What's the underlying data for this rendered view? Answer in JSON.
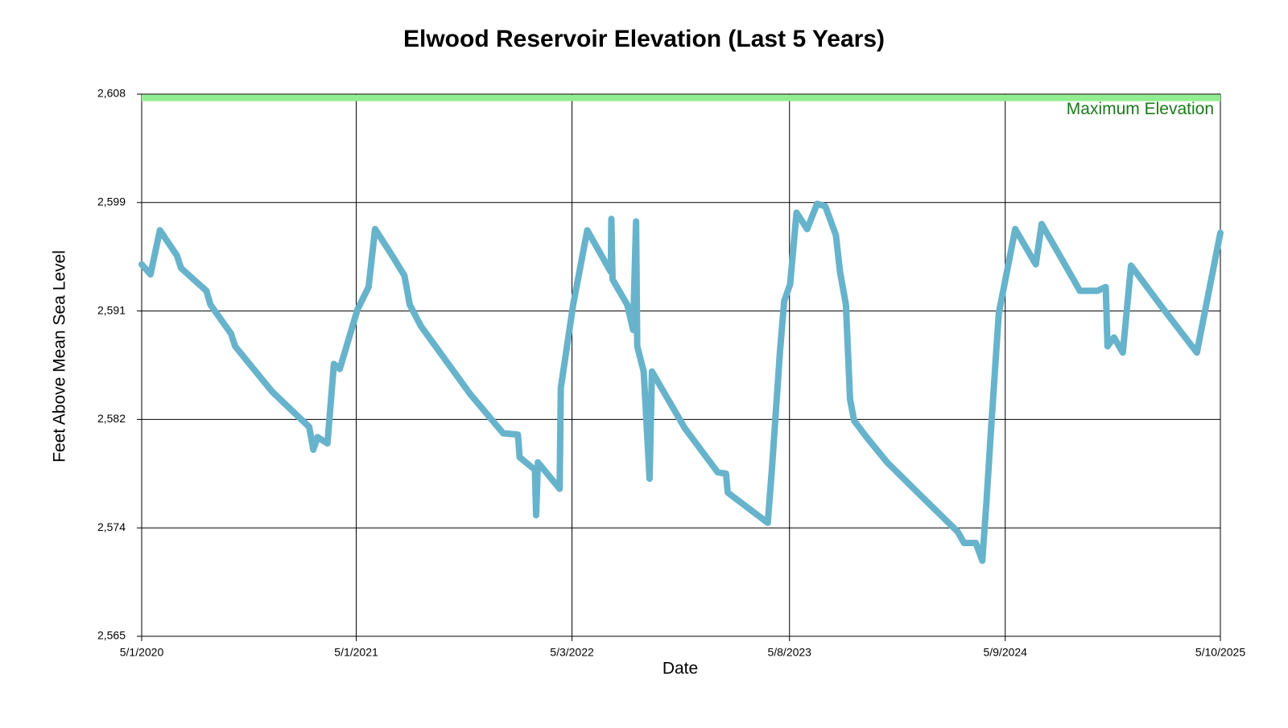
{
  "chart_data": {
    "type": "line",
    "title": "Elwood Reservoir Elevation (Last 5 Years)",
    "x_label": "Date",
    "y_label": "Feet Above Mean Sea Level",
    "color": "#67b3cc",
    "grid": true,
    "x": [
      "2020-05-01",
      "2020-05-16",
      "2020-06-01",
      "2020-06-30",
      "2020-07-07",
      "2020-08-19",
      "2020-08-26",
      "2020-09-30",
      "2020-10-07",
      "2020-12-09",
      "2021-02-10",
      "2021-02-17",
      "2021-02-24",
      "2021-03-13",
      "2021-03-24",
      "2021-04-03",
      "2021-05-03",
      "2021-05-22",
      "2021-06-02",
      "2021-07-01",
      "2021-07-22",
      "2021-07-31",
      "2021-08-19",
      "2021-09-02",
      "2021-11-11",
      "2022-01-06",
      "2022-01-31",
      "2022-02-03",
      "2022-03-01",
      "2022-03-03",
      "2022-03-06",
      "2022-04-12",
      "2022-04-14",
      "2022-05-05",
      "2022-05-29",
      "2022-07-08",
      "2022-07-09",
      "2022-07-11",
      "2022-08-05",
      "2022-08-15",
      "2022-08-20",
      "2022-08-22",
      "2022-09-02",
      "2022-09-12",
      "2022-09-16",
      "2022-11-11",
      "2023-01-06",
      "2023-01-20",
      "2023-01-23",
      "2023-04-01",
      "2023-04-08",
      "2023-04-22",
      "2023-04-29",
      "2023-05-09",
      "2023-05-20",
      "2023-06-07",
      "2023-06-24",
      "2023-07-08",
      "2023-07-26",
      "2023-08-02",
      "2023-08-12",
      "2023-08-19",
      "2023-08-26",
      "2023-09-16",
      "2023-10-21",
      "2023-12-23",
      "2024-02-18",
      "2024-02-29",
      "2024-03-20",
      "2024-03-31",
      "2024-04-07",
      "2024-04-14",
      "2024-04-28",
      "2024-05-26",
      "2024-06-30",
      "2024-07-10",
      "2024-08-11",
      "2024-09-13",
      "2024-10-13",
      "2024-10-27",
      "2024-10-30",
      "2024-11-10",
      "2024-11-25",
      "2024-12-09",
      "2025-02-03",
      "2025-03-31",
      "2025-05-10"
    ],
    "values": [
      2594.5,
      2593.7,
      2597.2,
      2595.2,
      2594.2,
      2592.4,
      2591.3,
      2589.0,
      2588.0,
      2584.4,
      2581.6,
      2579.8,
      2580.8,
      2580.3,
      2586.6,
      2586.2,
      2590.9,
      2592.7,
      2597.3,
      2595.2,
      2593.6,
      2591.3,
      2589.6,
      2588.7,
      2584.2,
      2581.1,
      2581.0,
      2579.2,
      2578.2,
      2574.6,
      2578.8,
      2576.7,
      2584.7,
      2591.3,
      2597.2,
      2593.9,
      2598.1,
      2593.3,
      2591.3,
      2589.3,
      2597.9,
      2588.0,
      2586.0,
      2577.5,
      2586.0,
      2581.5,
      2578.0,
      2577.9,
      2576.4,
      2574.0,
      2578.2,
      2587.7,
      2591.6,
      2592.9,
      2598.6,
      2597.3,
      2599.3,
      2599.1,
      2596.8,
      2593.9,
      2591.3,
      2583.8,
      2582.1,
      2580.8,
      2578.8,
      2575.9,
      2573.3,
      2572.4,
      2572.4,
      2571.0,
      2575.6,
      2580.8,
      2590.6,
      2597.3,
      2594.5,
      2597.7,
      2595.1,
      2592.4,
      2592.4,
      2592.7,
      2588.0,
      2588.7,
      2587.5,
      2594.4,
      2590.9,
      2587.5,
      2597.0
    ],
    "xlim": [
      "2020-05-01",
      "2025-05-10"
    ],
    "xticks": [
      {
        "value": "2020-05-01",
        "label": "5/1/2020"
      },
      {
        "value": "2021-05-01",
        "label": "5/1/2021"
      },
      {
        "value": "2022-05-03",
        "label": "5/3/2022"
      },
      {
        "value": "2023-05-08",
        "label": "5/8/2023"
      },
      {
        "value": "2024-05-09",
        "label": "5/9/2024"
      },
      {
        "value": "2025-05-10",
        "label": "5/10/2025"
      }
    ],
    "ylim": [
      2565,
      2608
    ],
    "yticks": [
      {
        "value": 2565,
        "label": "2,565"
      },
      {
        "value": 2573.6,
        "label": "2,574"
      },
      {
        "value": 2582.2,
        "label": "2,582"
      },
      {
        "value": 2590.8,
        "label": "2,591"
      },
      {
        "value": 2599.4,
        "label": "2,599"
      },
      {
        "value": 2608,
        "label": "2,608"
      }
    ],
    "reference_line": {
      "label": "Maximum Elevation",
      "value": 2607.7,
      "color": "#90ee90",
      "label_color": "#1a7a1a"
    }
  }
}
